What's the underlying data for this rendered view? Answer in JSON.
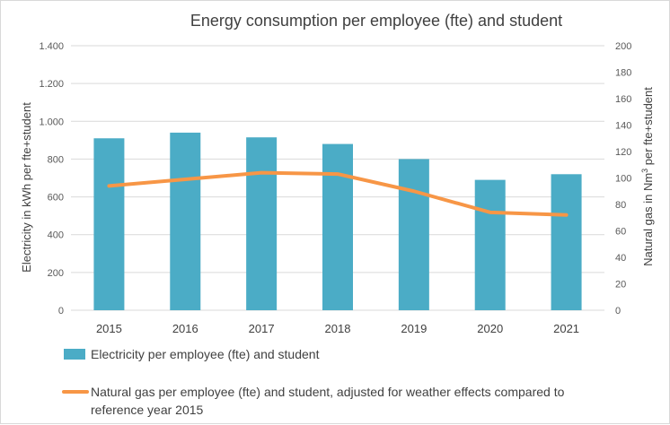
{
  "chart_data": {
    "type": "bar+line",
    "title": "Energy consumption per employee (fte) and student",
    "categories": [
      "2015",
      "2016",
      "2017",
      "2018",
      "2019",
      "2020",
      "2021"
    ],
    "series": [
      {
        "name": "Electricity per employee (fte) and student",
        "type": "bar",
        "axis": "left",
        "color": "#4bacc6",
        "values": [
          910,
          940,
          915,
          880,
          800,
          690,
          720
        ]
      },
      {
        "name": "Natural gas per employee (fte) and student, adjusted for weather effects compared to reference year 2015",
        "legend_lines": [
          "Natural gas per employee (fte) and student, adjusted for weather effects compared to",
          "reference year 2015"
        ],
        "type": "line",
        "axis": "right",
        "color": "#f79646",
        "values": [
          94,
          99,
          104,
          103,
          90,
          74,
          72
        ]
      }
    ],
    "y_left": {
      "label_main": "Electricity in kWh per fte+student",
      "ylim": [
        0,
        1400
      ],
      "ticks": [
        0,
        200,
        400,
        600,
        800,
        1000,
        1200,
        1400
      ],
      "tick_labels": [
        "0",
        "200",
        "400",
        "600",
        "800",
        "1.000",
        "1.200",
        "1.400"
      ]
    },
    "y_right": {
      "label_pre": "Natural gas in Nm",
      "label_sup": "3",
      "label_post": " per fte+student",
      "ylim": [
        0,
        200
      ],
      "ticks": [
        0,
        20,
        40,
        60,
        80,
        100,
        120,
        140,
        160,
        180,
        200
      ],
      "tick_labels": [
        "0",
        "20",
        "40",
        "60",
        "80",
        "100",
        "120",
        "140",
        "160",
        "180",
        "200"
      ]
    },
    "grid": true,
    "legend": "bottom"
  }
}
